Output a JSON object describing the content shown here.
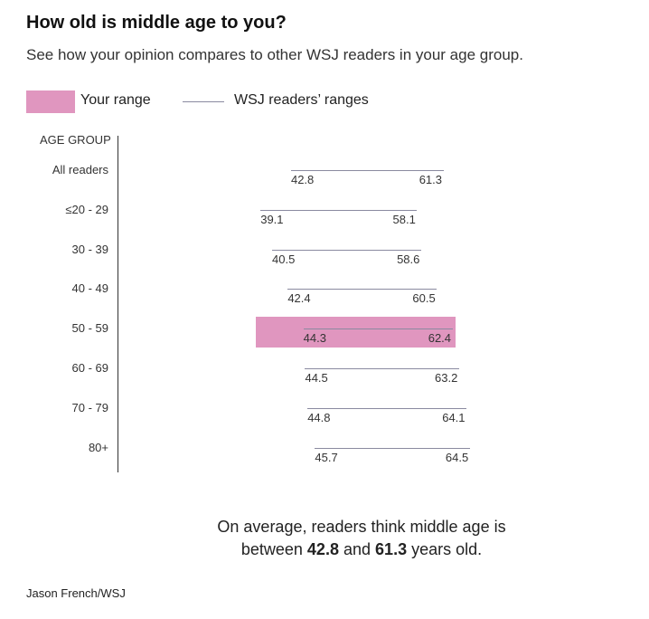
{
  "title": "How old is middle age to you?",
  "subtitle": "See how your opinion compares to other WSJ readers in your age group.",
  "legend": {
    "your_range": "Your range",
    "wsj_ranges": "WSJ readers’ ranges"
  },
  "colors": {
    "your_range": "#e096bf",
    "wsj_line": "#8a8aa0"
  },
  "chart_data": {
    "type": "range",
    "ylabel": "AGE GROUP",
    "xlim": [
      33,
      70
    ],
    "rows": [
      {
        "group": "All readers",
        "low": 42.8,
        "high": 61.3,
        "low_label": "42.8",
        "high_label": "61.3"
      },
      {
        "group": "≤20 - 29",
        "low": 39.1,
        "high": 58.1,
        "low_label": "39.1",
        "high_label": "58.1"
      },
      {
        "group": "30 - 39",
        "low": 40.5,
        "high": 58.6,
        "low_label": "40.5",
        "high_label": "58.6"
      },
      {
        "group": "40 - 49",
        "low": 42.4,
        "high": 60.5,
        "low_label": "42.4",
        "high_label": "60.5"
      },
      {
        "group": "50 - 59",
        "low": 44.3,
        "high": 62.4,
        "low_label": "44.3",
        "high_label": "62.4"
      },
      {
        "group": "60 - 69",
        "low": 44.5,
        "high": 63.2,
        "low_label": "44.5",
        "high_label": "63.2"
      },
      {
        "group": "70 - 79",
        "low": 44.8,
        "high": 64.1,
        "low_label": "44.8",
        "high_label": "64.1"
      },
      {
        "group": "80+",
        "low": 45.7,
        "high": 64.5,
        "low_label": "45.7",
        "high_label": "64.5"
      }
    ],
    "your_range": {
      "group": "50 - 59",
      "low": 38.5,
      "high": 62.8
    }
  },
  "summary": {
    "line1": "On average, readers think middle age is",
    "prefix": "between",
    "low": "42.8",
    "mid": "and",
    "high": "61.3",
    "suffix": "years old."
  },
  "credit": "Jason French/WSJ"
}
